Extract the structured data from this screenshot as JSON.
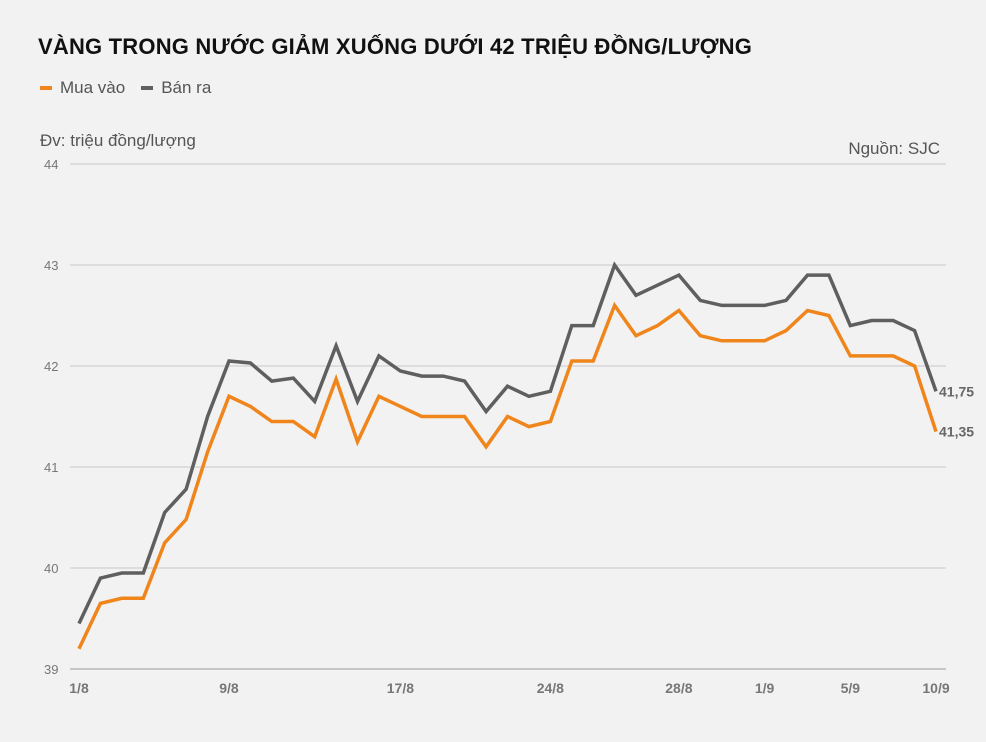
{
  "title": "VÀNG TRONG NƯỚC GIẢM XUỐNG DƯỚI 42 TRIỆU ĐỒNG/LƯỢNG",
  "unit": "Đv: triệu đồng/lượng",
  "source": "Nguồn: SJC",
  "colors": {
    "buy": "#f0851c",
    "sell": "#5f5f5f",
    "grid": "#c8c8c8"
  },
  "chart_data": {
    "type": "line",
    "title": "VÀNG TRONG NƯỚC GIẢM XUỐNG DƯỚI 42 TRIỆU ĐỒNG/LƯỢNG",
    "ylabel": "Đv: triệu đồng/lượng",
    "ylim": [
      39,
      44
    ],
    "yticks": [
      "39",
      "40",
      "41",
      "42",
      "43",
      "44"
    ],
    "xticks": [
      {
        "index": 0,
        "label": "1/8"
      },
      {
        "index": 7,
        "label": "9/8"
      },
      {
        "index": 15,
        "label": "17/8"
      },
      {
        "index": 22,
        "label": "24/8"
      },
      {
        "index": 28,
        "label": "28/8"
      },
      {
        "index": 32,
        "label": "1/9"
      },
      {
        "index": 36,
        "label": "5/9"
      },
      {
        "index": 40,
        "label": "10/9"
      }
    ],
    "grid": true,
    "legend": "top-left",
    "series": [
      {
        "name": "Mua vào",
        "color": "#f0851c",
        "values": [
          39.2,
          39.65,
          39.7,
          39.7,
          40.25,
          40.48,
          41.15,
          41.7,
          41.6,
          41.45,
          41.45,
          41.3,
          41.87,
          41.25,
          41.7,
          41.6,
          41.5,
          41.5,
          41.5,
          41.2,
          41.5,
          41.4,
          41.45,
          42.05,
          42.05,
          42.6,
          42.3,
          42.4,
          42.55,
          42.3,
          42.25,
          42.25,
          42.25,
          42.35,
          42.55,
          42.5,
          42.1,
          42.1,
          42.1,
          42.0,
          41.35
        ],
        "end_label": "41,35"
      },
      {
        "name": "Bán ra",
        "color": "#5f5f5f",
        "values": [
          39.45,
          39.9,
          39.95,
          39.95,
          40.55,
          40.78,
          41.5,
          42.05,
          42.03,
          41.85,
          41.88,
          41.65,
          42.2,
          41.65,
          42.1,
          41.95,
          41.9,
          41.9,
          41.85,
          41.55,
          41.8,
          41.7,
          41.75,
          42.4,
          42.4,
          43.0,
          42.7,
          42.8,
          42.9,
          42.65,
          42.6,
          42.6,
          42.6,
          42.65,
          42.9,
          42.9,
          42.4,
          42.45,
          42.45,
          42.35,
          41.75
        ],
        "end_label": "41,75"
      }
    ]
  }
}
